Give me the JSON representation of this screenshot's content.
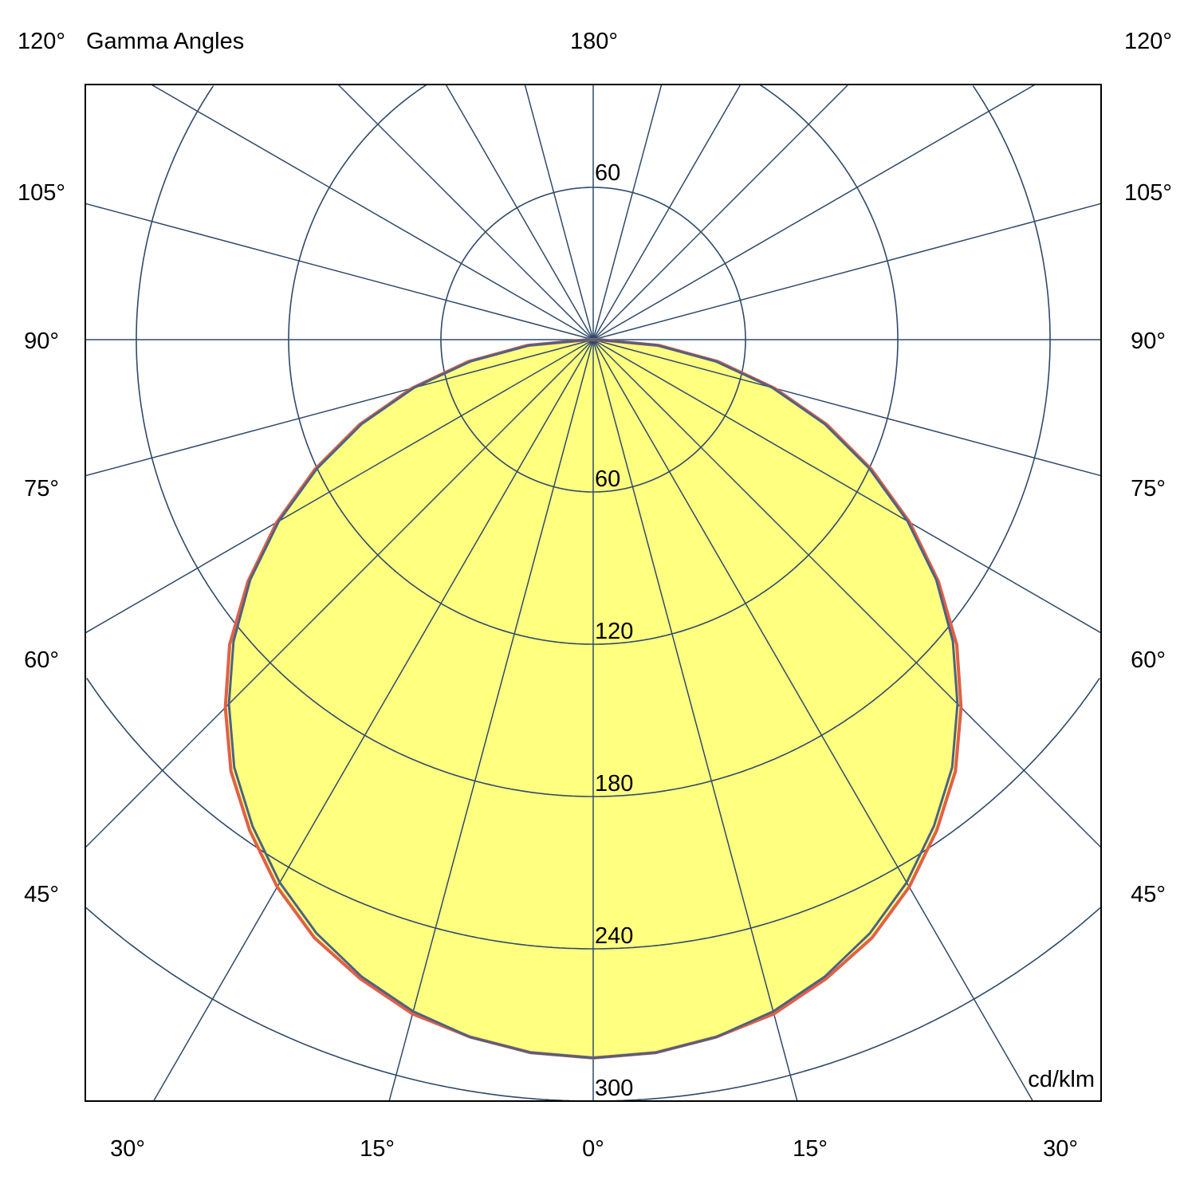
{
  "chart_data": {
    "type": "polar",
    "title": "Gamma Angles",
    "unit": "cd/klm",
    "top_label": "180°",
    "side_labels": [
      "120°",
      "105°",
      "90°",
      "75°",
      "60°",
      "45°"
    ],
    "bottom_labels": [
      "30°",
      "15°",
      "0°",
      "15°",
      "30°"
    ],
    "radial_ticks": [
      60,
      120,
      180,
      240,
      300
    ],
    "radial_tick_labels_upper": [
      "60"
    ],
    "radial_tick_labels_lower": [
      "60",
      "120",
      "180",
      "240",
      "300"
    ],
    "r_max": 300,
    "angle_grid_step_deg": 15,
    "grid": true,
    "gamma_deg": [
      0,
      5,
      10,
      15,
      20,
      25,
      30,
      35,
      40,
      45,
      50,
      55,
      60,
      65,
      70,
      75,
      80,
      85,
      90
    ],
    "series": [
      {
        "color": "#e0604a",
        "values": [
          283,
          282,
          279,
          275,
          268,
          260,
          249,
          236,
          222,
          205,
          187,
          166,
          144,
          121,
          98,
          74,
          50,
          26,
          2
        ]
      },
      {
        "color": "#4d6282",
        "values": [
          283,
          282,
          279,
          274,
          267,
          258,
          247,
          234,
          220,
          203,
          185,
          165,
          143,
          120,
          97,
          73,
          49,
          25,
          2
        ]
      }
    ],
    "fill_color": "#ffff80",
    "grid_color": "#2f4a6a"
  }
}
